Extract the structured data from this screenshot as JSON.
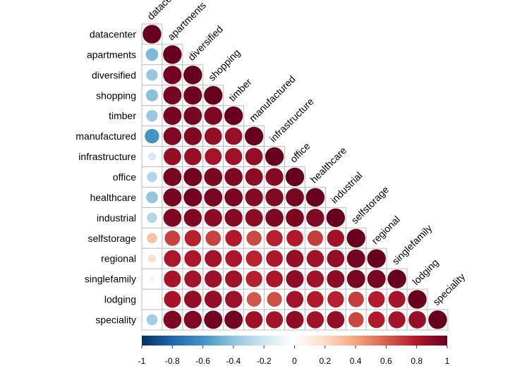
{
  "chart_data": {
    "type": "heatmap",
    "subtype": "correlation-matrix-lower-triangle-circles",
    "variables": [
      "datacenter",
      "apartments",
      "diversified",
      "shopping",
      "timber",
      "manufactured",
      "infrastructure",
      "office",
      "healthcare",
      "industrial",
      "selfstorage",
      "regional",
      "singlefamily",
      "lodging",
      "speciality"
    ],
    "matrix": [
      [
        1
      ],
      [
        -0.45,
        1
      ],
      [
        -0.38,
        0.97,
        1
      ],
      [
        -0.42,
        0.96,
        0.98,
        1
      ],
      [
        -0.38,
        0.96,
        0.96,
        0.94,
        1
      ],
      [
        -0.6,
        0.93,
        0.93,
        0.88,
        0.87,
        1
      ],
      [
        -0.18,
        0.88,
        0.87,
        0.83,
        0.85,
        0.88,
        1
      ],
      [
        -0.3,
        0.96,
        0.97,
        0.95,
        0.94,
        0.9,
        0.92,
        1
      ],
      [
        -0.4,
        0.96,
        0.97,
        0.96,
        0.95,
        0.92,
        0.93,
        0.96,
        1
      ],
      [
        -0.3,
        0.94,
        0.93,
        0.91,
        0.92,
        0.9,
        0.94,
        0.95,
        0.93,
        1
      ],
      [
        0.3,
        0.68,
        0.78,
        0.68,
        0.8,
        0.66,
        0.78,
        0.8,
        0.7,
        0.85,
        1
      ],
      [
        0.18,
        0.82,
        0.82,
        0.84,
        0.82,
        0.77,
        0.81,
        0.88,
        0.85,
        0.88,
        0.97,
        1
      ],
      [
        0.08,
        0.83,
        0.84,
        0.86,
        0.85,
        0.78,
        0.82,
        0.9,
        0.85,
        0.9,
        0.96,
        0.96,
        1
      ],
      [
        0.02,
        0.83,
        0.88,
        0.88,
        0.86,
        0.62,
        0.64,
        0.84,
        0.8,
        0.78,
        0.7,
        0.79,
        0.83,
        1
      ],
      [
        -0.35,
        0.94,
        0.93,
        0.97,
        0.97,
        0.86,
        0.84,
        0.9,
        0.85,
        0.88,
        0.67,
        0.8,
        0.84,
        0.88,
        1
      ]
    ],
    "colorbar": {
      "range": [
        -1,
        1
      ],
      "ticks": [
        -1,
        -0.8,
        -0.6,
        -0.4,
        -0.2,
        0,
        0.2,
        0.4,
        0.6,
        0.8,
        1
      ],
      "tick_labels": [
        "-1",
        "-0.8",
        "-0.6",
        "-0.4",
        "-0.2",
        "0",
        "0.2",
        "0.4",
        "0.6",
        "0.8",
        "1"
      ],
      "placement": "bottom"
    },
    "palette": [
      "#053061",
      "#2166AC",
      "#4393C3",
      "#92C5DE",
      "#D1E5F0",
      "#FFFFFF",
      "#FDDBC7",
      "#F4A582",
      "#D6604D",
      "#B2182B",
      "#67001F"
    ],
    "grid_color": "#BEBEBE",
    "grid": true
  }
}
